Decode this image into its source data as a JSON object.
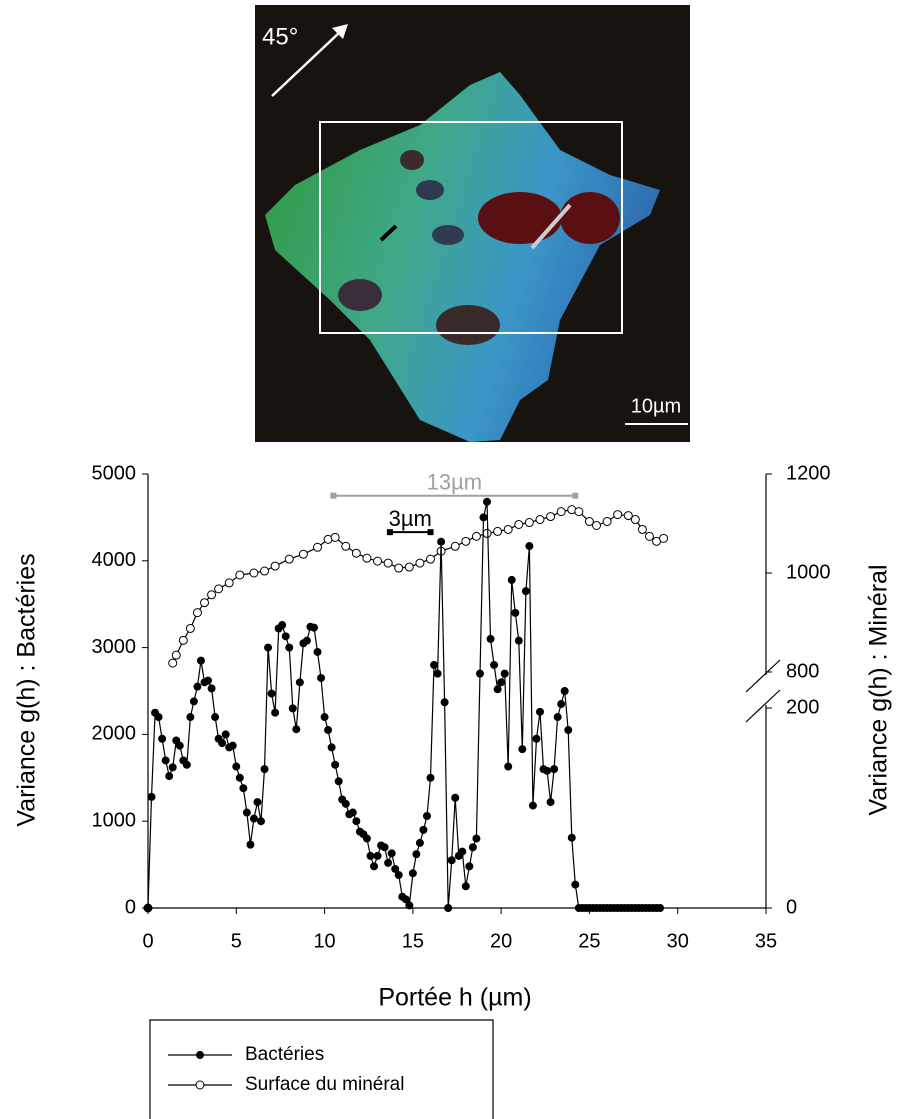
{
  "image": {
    "angle_label": "45°",
    "scale_label": "10µm"
  },
  "chart_data": {
    "type": "line",
    "x_label": "Portée h (µm)",
    "y_label": "Variance g(h) : Bactéries",
    "y2_label": "Variance g(h) : Minéral",
    "xlim": [
      0,
      35
    ],
    "xticks": [
      0,
      5,
      10,
      15,
      20,
      25,
      30,
      35
    ],
    "ylim": [
      0,
      5000
    ],
    "yticks": [
      0,
      1000,
      2000,
      3000,
      4000,
      5000
    ],
    "y2lim": [
      0,
      1200
    ],
    "y2ticks": [
      0,
      200,
      800,
      1000,
      1200
    ],
    "y2_break": [
      200,
      800
    ],
    "legend": "bottom-left",
    "annotations": [
      {
        "text": "13µm",
        "x": [
          10.5,
          24.2
        ],
        "y": 4750,
        "color": "#a0a0a0"
      },
      {
        "text": "3µm",
        "x": [
          13.7,
          16.0
        ],
        "y": 4330,
        "color": "#000000"
      }
    ],
    "series": [
      {
        "name": "Bactéries",
        "color": "#000000",
        "marker": "filled",
        "x": [
          0,
          0.2,
          0.4,
          0.6,
          0.8,
          1,
          1.2,
          1.4,
          1.6,
          1.8,
          2,
          2.2,
          2.4,
          2.6,
          2.8,
          3,
          3.2,
          3.4,
          3.6,
          3.8,
          4,
          4.2,
          4.4,
          4.6,
          4.8,
          5,
          5.2,
          5.4,
          5.6,
          5.8,
          6,
          6.2,
          6.4,
          6.6,
          6.8,
          7,
          7.2,
          7.4,
          7.6,
          7.8,
          8,
          8.2,
          8.4,
          8.6,
          8.8,
          9,
          9.2,
          9.4,
          9.6,
          9.8,
          10,
          10.2,
          10.4,
          10.6,
          10.8,
          11,
          11.2,
          11.4,
          11.6,
          11.8,
          12,
          12.2,
          12.4,
          12.6,
          12.8,
          13,
          13.2,
          13.4,
          13.6,
          13.8,
          14,
          14.2,
          14.4,
          14.6,
          14.8,
          15,
          15.2,
          15.4,
          15.6,
          15.8,
          16,
          16.2,
          16.4,
          16.6,
          16.8,
          17,
          17.2,
          17.4,
          17.6,
          17.8,
          18,
          18.2,
          18.4,
          18.6,
          18.8,
          19,
          19.2,
          19.4,
          19.6,
          19.8,
          20,
          20.2,
          20.4,
          20.6,
          20.8,
          21,
          21.2,
          21.4,
          21.6,
          21.8,
          22,
          22.2,
          22.4,
          22.6,
          22.8,
          23,
          23.2,
          23.4,
          23.6,
          23.8,
          24,
          24.2,
          24.4,
          24.6,
          24.8,
          25,
          25.2,
          25.4,
          25.6,
          25.8,
          26,
          26.2,
          26.4,
          26.6,
          26.8,
          27,
          27.2,
          27.4,
          27.6,
          27.8,
          28,
          28.2,
          28.4,
          28.6,
          28.8,
          29
        ],
        "values": [
          0,
          1280,
          2250,
          2200,
          1950,
          1700,
          1520,
          1620,
          1930,
          1870,
          1700,
          1650,
          2200,
          2380,
          2550,
          2850,
          2600,
          2620,
          2530,
          2200,
          1950,
          1900,
          2000,
          1850,
          1870,
          1630,
          1500,
          1380,
          1100,
          730,
          1030,
          1220,
          1000,
          1600,
          3000,
          2470,
          2250,
          3220,
          3260,
          3130,
          3000,
          2300,
          2060,
          2600,
          3050,
          3080,
          3240,
          3230,
          2950,
          2650,
          2200,
          2050,
          1850,
          1650,
          1460,
          1250,
          1200,
          1080,
          1100,
          1000,
          880,
          850,
          800,
          600,
          480,
          600,
          720,
          700,
          520,
          630,
          450,
          380,
          130,
          100,
          30,
          400,
          620,
          750,
          900,
          1060,
          1500,
          2800,
          2700,
          4220,
          2370,
          0,
          550,
          1270,
          600,
          650,
          250,
          480,
          700,
          800,
          2700,
          4500,
          4680,
          3100,
          2800,
          2520,
          2600,
          2700,
          1630,
          3780,
          3400,
          3080,
          1830,
          3650,
          4170,
          1180,
          1950,
          2260,
          1600,
          1580,
          1220,
          1600,
          2200,
          2350,
          2500,
          2050,
          810,
          270,
          0,
          0,
          0,
          0,
          0,
          0,
          0,
          0,
          0,
          0,
          0,
          0,
          0,
          0,
          0,
          0,
          0,
          0,
          0,
          0,
          0,
          0,
          0,
          0
        ]
      },
      {
        "name": "Surface du minéral",
        "color": "#000000",
        "marker": "open",
        "axis": "y2",
        "x": [
          0,
          0.7,
          1.4,
          1.6,
          2,
          2.4,
          2.8,
          3.2,
          3.6,
          4,
          4.6,
          5.2,
          6,
          6.6,
          7.2,
          8,
          8.8,
          9.6,
          10.2,
          10.6,
          11.2,
          11.8,
          12.4,
          13,
          13.6,
          14.2,
          14.8,
          15.4,
          16,
          16.6,
          17.4,
          18,
          18.6,
          19.2,
          19.8,
          20.4,
          21,
          21.6,
          22.2,
          22.8,
          23.4,
          24,
          24.4,
          25,
          25.4,
          26,
          26.6,
          27.2,
          27.6,
          28,
          28.4,
          28.8,
          29.2
        ],
        "values": [
          0,
          null,
          818,
          834,
          864,
          888,
          920,
          940,
          956,
          968,
          980,
          996,
          1000,
          1004,
          1014,
          1028,
          1038,
          1052,
          1068,
          1072,
          1054,
          1040,
          1030,
          1024,
          1020,
          1010,
          1012,
          1020,
          1028,
          1044,
          1054,
          1064,
          1074,
          1080,
          1084,
          1088,
          1098,
          1102,
          1108,
          1114,
          1124,
          1128,
          1124,
          1104,
          1096,
          1104,
          1118,
          1116,
          1108,
          1088,
          1074,
          1064,
          1070
        ]
      }
    ]
  }
}
